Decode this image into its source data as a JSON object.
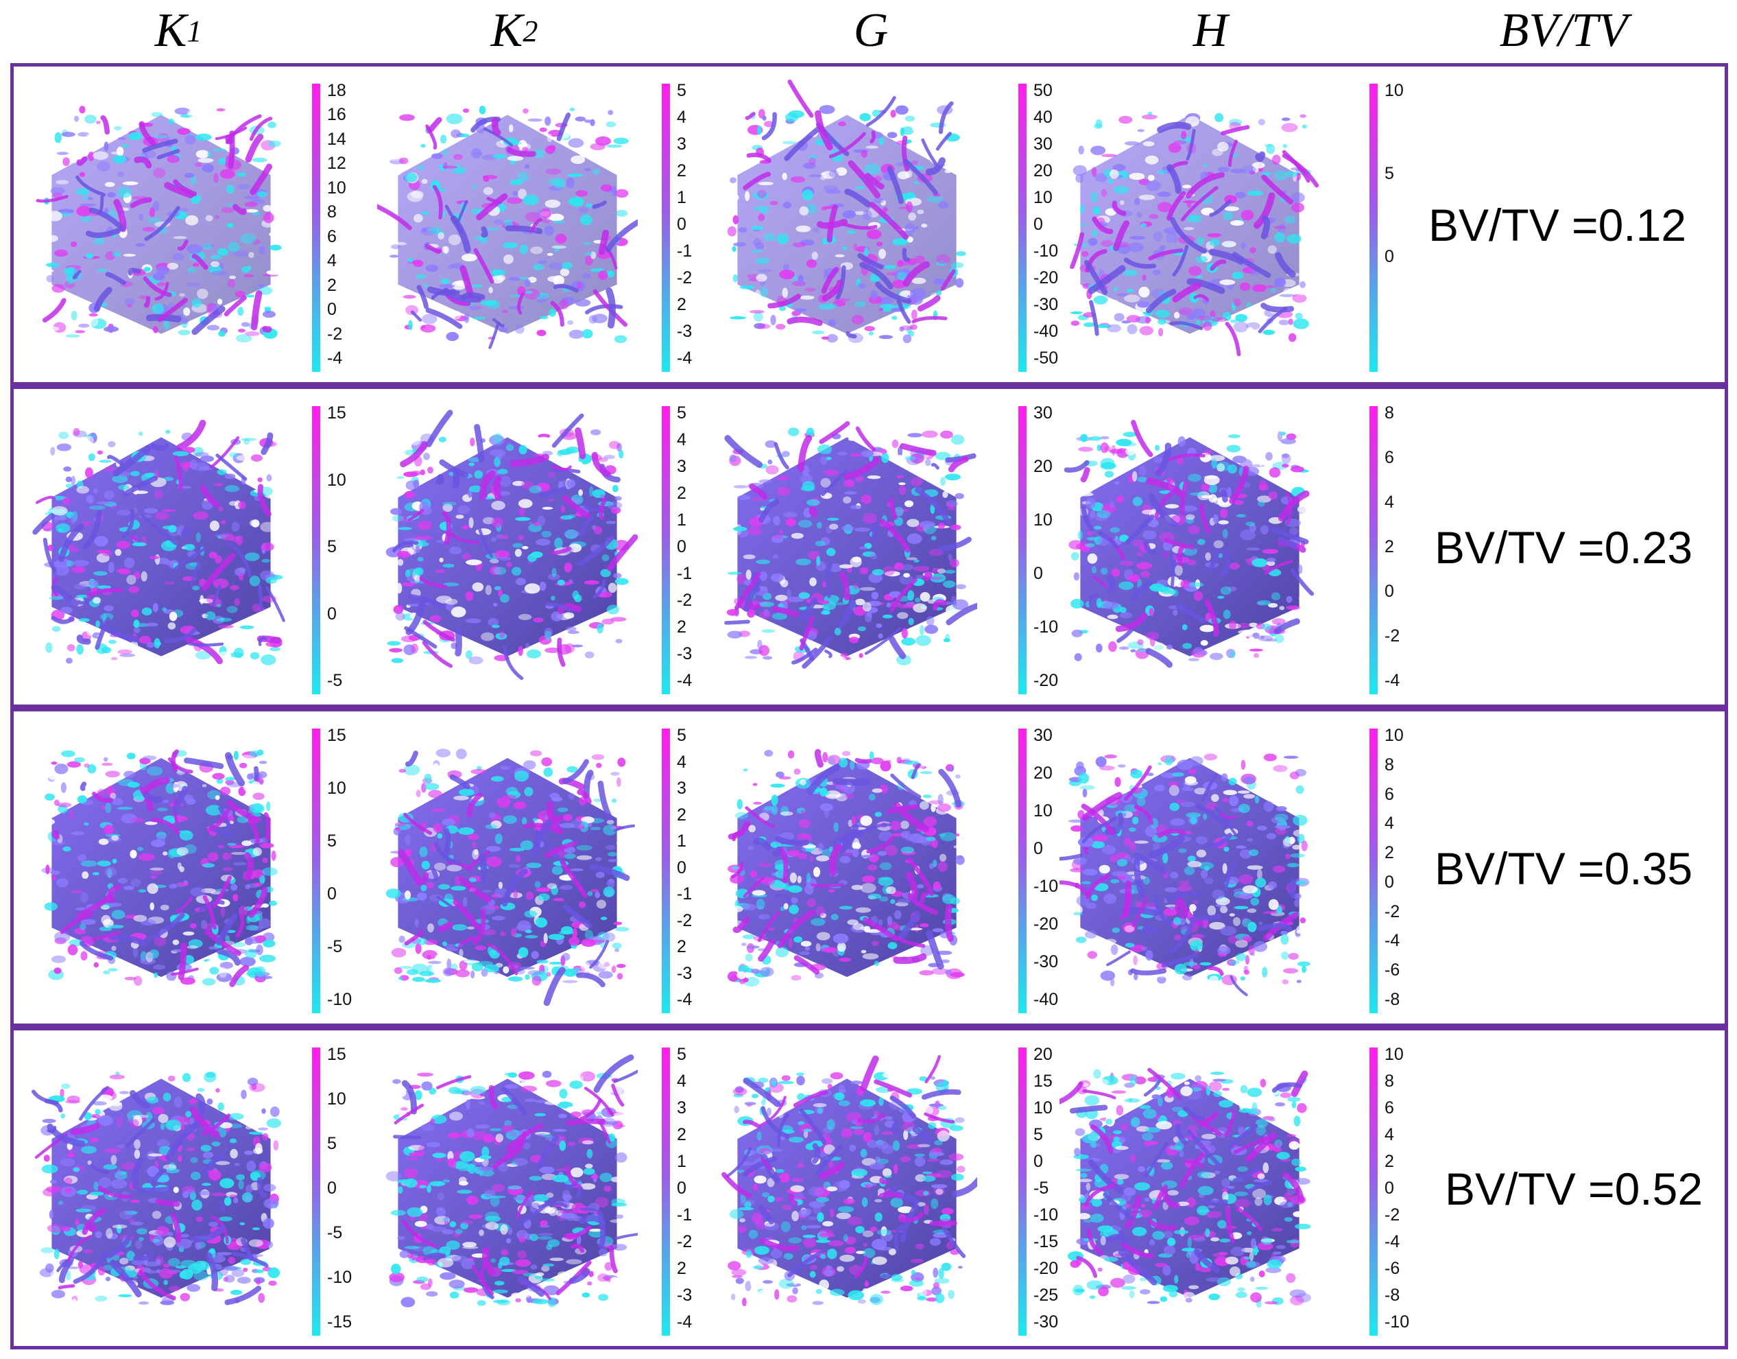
{
  "headers": {
    "k1": "K",
    "k1_sub": "1",
    "k2": "K",
    "k2_sub": "2",
    "g": "G",
    "h": "H",
    "bvtv": "BV/TV"
  },
  "colors": {
    "border": "#6a2fa0",
    "scale_high": "#ff1ee8",
    "scale_mid": "#8a6ff0",
    "scale_low": "#1ee8f0"
  },
  "rows": [
    {
      "label": "BV/TV =0.12",
      "scales": [
        [
          "18",
          "16",
          "14",
          "12",
          "10",
          "8",
          "6",
          "4",
          "2",
          "0",
          "-2",
          "-4"
        ],
        [
          "5",
          "4",
          "3",
          "2",
          "1",
          "0",
          "-1",
          "-2",
          "2",
          "-3",
          "-4"
        ],
        [
          "50",
          "40",
          "30",
          "20",
          "10",
          "0",
          "-10",
          "-20",
          "-30",
          "-40",
          "-50"
        ],
        [
          "10",
          "5",
          "0"
        ]
      ]
    },
    {
      "label": "BV/TV =0.23",
      "scales": [
        [
          "15",
          "10",
          "5",
          "0",
          "-5"
        ],
        [
          "5",
          "4",
          "3",
          "2",
          "1",
          "0",
          "-1",
          "-2",
          "2",
          "-3",
          "-4"
        ],
        [
          "30",
          "20",
          "10",
          "0",
          "-10",
          "-20"
        ],
        [
          "8",
          "6",
          "4",
          "2",
          "0",
          "-2",
          "-4"
        ]
      ]
    },
    {
      "label": "BV/TV =0.35",
      "scales": [
        [
          "15",
          "10",
          "5",
          "0",
          "-5",
          "-10"
        ],
        [
          "5",
          "4",
          "3",
          "2",
          "1",
          "0",
          "-1",
          "-2",
          "2",
          "-3",
          "-4"
        ],
        [
          "30",
          "20",
          "10",
          "0",
          "-10",
          "-20",
          "-30",
          "-40"
        ],
        [
          "10",
          "8",
          "6",
          "4",
          "2",
          "0",
          "-2",
          "-4",
          "-6",
          "-8"
        ]
      ]
    },
    {
      "label": "BV/TV =0.52",
      "scales": [
        [
          "15",
          "10",
          "5",
          "0",
          "-5",
          "-10",
          "-15"
        ],
        [
          "5",
          "4",
          "3",
          "2",
          "1",
          "0",
          "-1",
          "-2",
          "2",
          "-3",
          "-4"
        ],
        [
          "20",
          "15",
          "10",
          "5",
          "0",
          "-5",
          "-10",
          "-15",
          "-20",
          "-25",
          "-30"
        ],
        [
          "10",
          "8",
          "6",
          "4",
          "2",
          "0",
          "-2",
          "-4",
          "-6",
          "-8",
          "-10"
        ]
      ]
    }
  ]
}
